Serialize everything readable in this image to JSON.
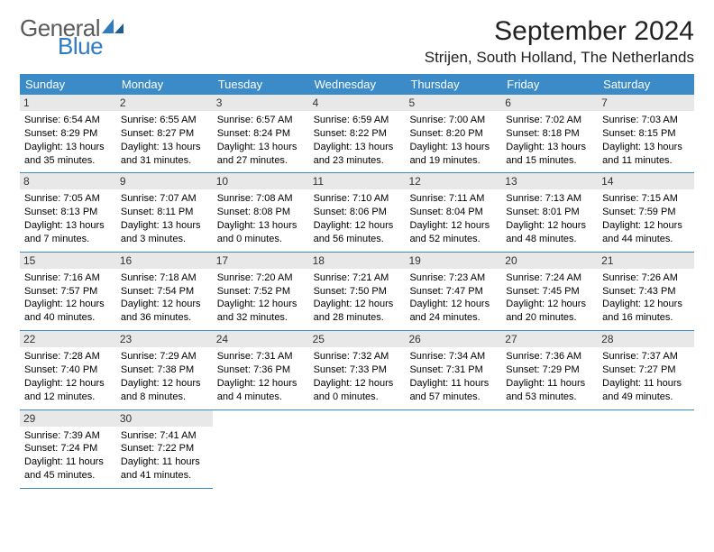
{
  "logo": {
    "text1": "General",
    "text2": "Blue"
  },
  "title": "September 2024",
  "location": "Strijen, South Holland, The Netherlands",
  "colors": {
    "header_bg": "#3b8bc8",
    "daynum_bg": "#e8e8e8",
    "border": "#3b8bc8"
  },
  "typography": {
    "title_fontsize": 30,
    "location_fontsize": 17,
    "dayheader_fontsize": 13,
    "body_fontsize": 11
  },
  "day_headers": [
    "Sunday",
    "Monday",
    "Tuesday",
    "Wednesday",
    "Thursday",
    "Friday",
    "Saturday"
  ],
  "weeks": [
    [
      {
        "n": "1",
        "sr": "6:54 AM",
        "ss": "8:29 PM",
        "dl": "13 hours and 35 minutes."
      },
      {
        "n": "2",
        "sr": "6:55 AM",
        "ss": "8:27 PM",
        "dl": "13 hours and 31 minutes."
      },
      {
        "n": "3",
        "sr": "6:57 AM",
        "ss": "8:24 PM",
        "dl": "13 hours and 27 minutes."
      },
      {
        "n": "4",
        "sr": "6:59 AM",
        "ss": "8:22 PM",
        "dl": "13 hours and 23 minutes."
      },
      {
        "n": "5",
        "sr": "7:00 AM",
        "ss": "8:20 PM",
        "dl": "13 hours and 19 minutes."
      },
      {
        "n": "6",
        "sr": "7:02 AM",
        "ss": "8:18 PM",
        "dl": "13 hours and 15 minutes."
      },
      {
        "n": "7",
        "sr": "7:03 AM",
        "ss": "8:15 PM",
        "dl": "13 hours and 11 minutes."
      }
    ],
    [
      {
        "n": "8",
        "sr": "7:05 AM",
        "ss": "8:13 PM",
        "dl": "13 hours and 7 minutes."
      },
      {
        "n": "9",
        "sr": "7:07 AM",
        "ss": "8:11 PM",
        "dl": "13 hours and 3 minutes."
      },
      {
        "n": "10",
        "sr": "7:08 AM",
        "ss": "8:08 PM",
        "dl": "13 hours and 0 minutes."
      },
      {
        "n": "11",
        "sr": "7:10 AM",
        "ss": "8:06 PM",
        "dl": "12 hours and 56 minutes."
      },
      {
        "n": "12",
        "sr": "7:11 AM",
        "ss": "8:04 PM",
        "dl": "12 hours and 52 minutes."
      },
      {
        "n": "13",
        "sr": "7:13 AM",
        "ss": "8:01 PM",
        "dl": "12 hours and 48 minutes."
      },
      {
        "n": "14",
        "sr": "7:15 AM",
        "ss": "7:59 PM",
        "dl": "12 hours and 44 minutes."
      }
    ],
    [
      {
        "n": "15",
        "sr": "7:16 AM",
        "ss": "7:57 PM",
        "dl": "12 hours and 40 minutes."
      },
      {
        "n": "16",
        "sr": "7:18 AM",
        "ss": "7:54 PM",
        "dl": "12 hours and 36 minutes."
      },
      {
        "n": "17",
        "sr": "7:20 AM",
        "ss": "7:52 PM",
        "dl": "12 hours and 32 minutes."
      },
      {
        "n": "18",
        "sr": "7:21 AM",
        "ss": "7:50 PM",
        "dl": "12 hours and 28 minutes."
      },
      {
        "n": "19",
        "sr": "7:23 AM",
        "ss": "7:47 PM",
        "dl": "12 hours and 24 minutes."
      },
      {
        "n": "20",
        "sr": "7:24 AM",
        "ss": "7:45 PM",
        "dl": "12 hours and 20 minutes."
      },
      {
        "n": "21",
        "sr": "7:26 AM",
        "ss": "7:43 PM",
        "dl": "12 hours and 16 minutes."
      }
    ],
    [
      {
        "n": "22",
        "sr": "7:28 AM",
        "ss": "7:40 PM",
        "dl": "12 hours and 12 minutes."
      },
      {
        "n": "23",
        "sr": "7:29 AM",
        "ss": "7:38 PM",
        "dl": "12 hours and 8 minutes."
      },
      {
        "n": "24",
        "sr": "7:31 AM",
        "ss": "7:36 PM",
        "dl": "12 hours and 4 minutes."
      },
      {
        "n": "25",
        "sr": "7:32 AM",
        "ss": "7:33 PM",
        "dl": "12 hours and 0 minutes."
      },
      {
        "n": "26",
        "sr": "7:34 AM",
        "ss": "7:31 PM",
        "dl": "11 hours and 57 minutes."
      },
      {
        "n": "27",
        "sr": "7:36 AM",
        "ss": "7:29 PM",
        "dl": "11 hours and 53 minutes."
      },
      {
        "n": "28",
        "sr": "7:37 AM",
        "ss": "7:27 PM",
        "dl": "11 hours and 49 minutes."
      }
    ],
    [
      {
        "n": "29",
        "sr": "7:39 AM",
        "ss": "7:24 PM",
        "dl": "11 hours and 45 minutes."
      },
      {
        "n": "30",
        "sr": "7:41 AM",
        "ss": "7:22 PM",
        "dl": "11 hours and 41 minutes."
      },
      null,
      null,
      null,
      null,
      null
    ]
  ],
  "labels": {
    "sunrise": "Sunrise:",
    "sunset": "Sunset:",
    "daylight": "Daylight:"
  }
}
